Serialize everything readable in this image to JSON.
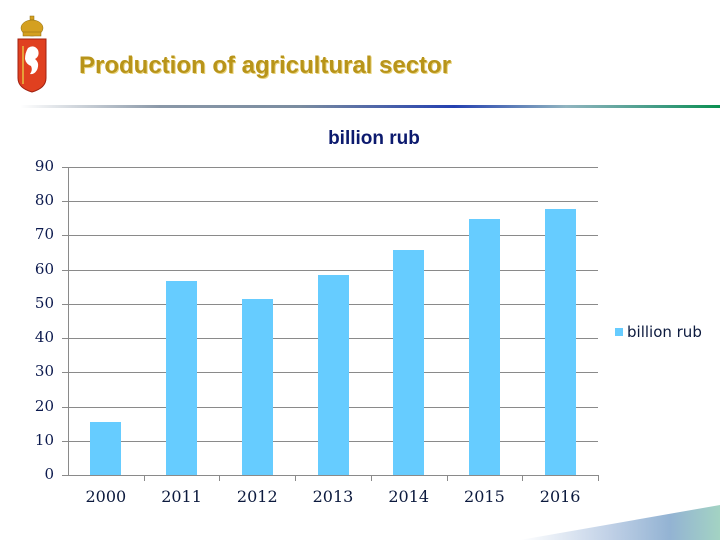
{
  "slide": {
    "title": "Production of agricultural sector",
    "logo": "coat-of-arms-icon"
  },
  "chart_data": {
    "type": "bar",
    "title": "billion rub",
    "categories": [
      "2000",
      "2011",
      "2012",
      "2013",
      "2014",
      "2015",
      "2016"
    ],
    "series": [
      {
        "name": "billion rub",
        "values": [
          15.5,
          56.7,
          51.5,
          58.5,
          65.7,
          74.7,
          77.8
        ],
        "color": "#66ccff"
      }
    ],
    "xlabel": "",
    "ylabel": "",
    "ylim": [
      0,
      90
    ],
    "yticks": [
      "90",
      "80",
      "70",
      "60",
      "50",
      "40",
      "30",
      "20",
      "10",
      "0"
    ],
    "grid": true,
    "legend_position": "right"
  }
}
